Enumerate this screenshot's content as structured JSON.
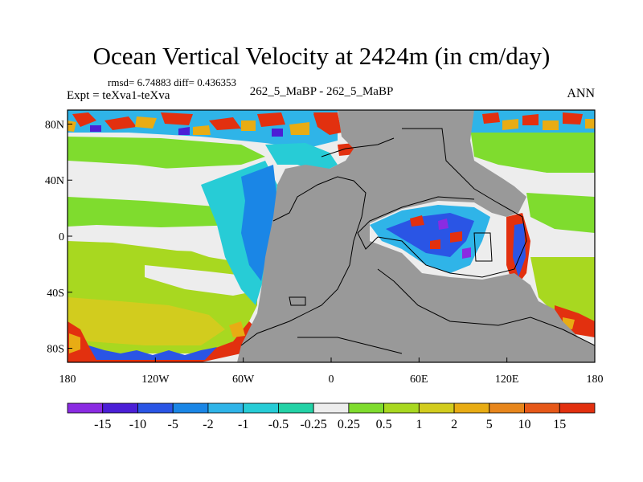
{
  "chart_data": {
    "type": "heatmap",
    "title": "Ocean Vertical Velocity at 2424m (in cm/day)",
    "stats_line": "rmsd= 6.74883 diff= 0.436353",
    "expt_label": "Expt = teXva1-teXva",
    "case_label": "262_5_MaBP - 262_5_MaBP",
    "season_label": "ANN",
    "x_ticks": [
      "180",
      "120W",
      "60W",
      "0",
      "60E",
      "120E",
      "180"
    ],
    "x_tick_values": [
      -180,
      -120,
      -60,
      0,
      60,
      120,
      180
    ],
    "y_ticks": [
      "80N",
      "40N",
      "0",
      "40S",
      "80S"
    ],
    "y_tick_values": [
      80,
      40,
      0,
      -40,
      -80
    ],
    "xlim": [
      -180,
      180
    ],
    "ylim": [
      -90,
      90
    ],
    "colorbar": {
      "labels": [
        "-15",
        "-10",
        "-5",
        "-2",
        "-1",
        "-0.5",
        "-0.25",
        "0.25",
        "0.5",
        "1",
        "2",
        "5",
        "10",
        "15"
      ],
      "colors": [
        "#8a2be2",
        "#4b1fd6",
        "#2a55e5",
        "#1a86e6",
        "#2fb4e8",
        "#27ccd6",
        "#23d2a6",
        "#ededed",
        "#7fdc2e",
        "#a8d820",
        "#d2cc1e",
        "#e8ac14",
        "#e7861c",
        "#e65818",
        "#e2300f"
      ]
    },
    "land_color": "#999999"
  }
}
